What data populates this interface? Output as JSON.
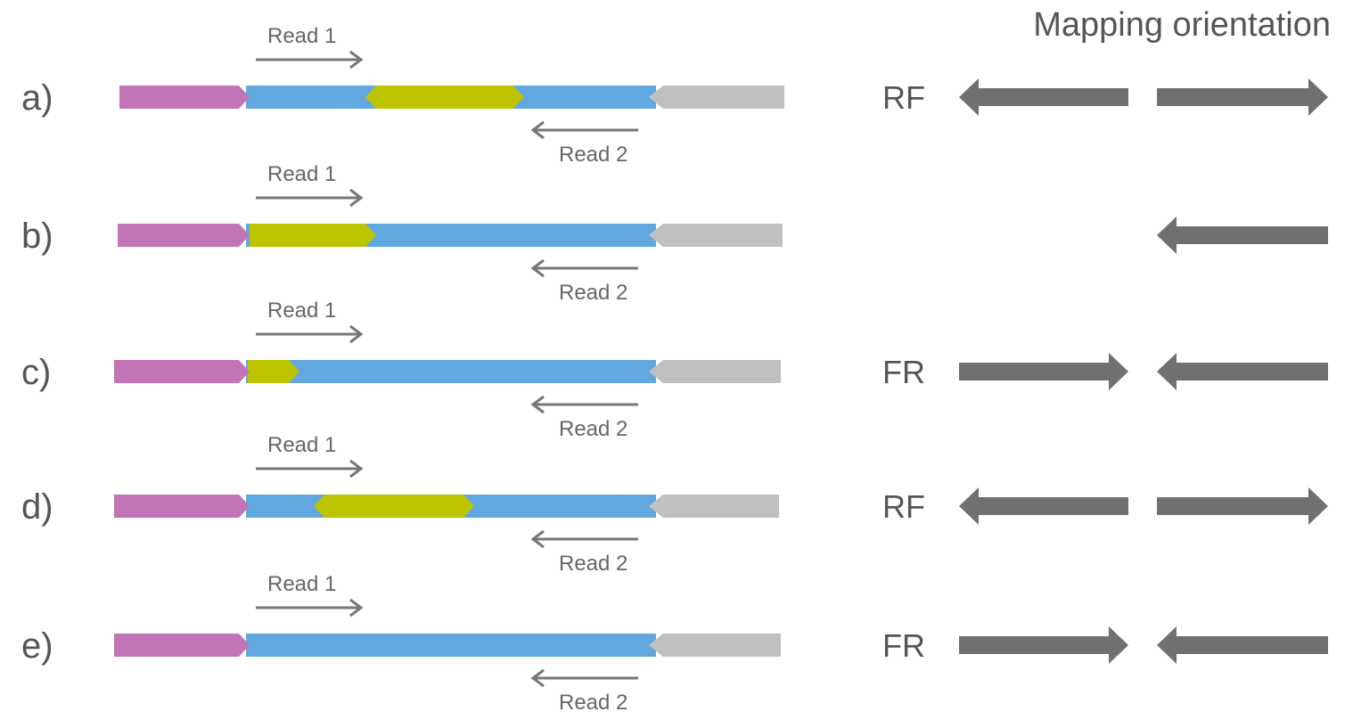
{
  "heading": "Mapping orientation",
  "colors": {
    "adapter_left": "#c275b6",
    "insert": "#62a8e0",
    "junction": "#bcc400",
    "adapter_right": "#c0c0c2",
    "read_arrow": "#777777",
    "orientation_arrow": "#707070",
    "text": "#555555"
  },
  "rows": [
    {
      "label": "a)",
      "read1_label": "Read 1",
      "read2_label": "Read 2",
      "orientation": "RF",
      "junction": "middle",
      "orientation_arrows": [
        "left",
        "right"
      ]
    },
    {
      "label": "b)",
      "read1_label": "Read 1",
      "read2_label": "Read 2",
      "orientation": "",
      "junction": "read1-start",
      "orientation_arrows": [
        "left"
      ]
    },
    {
      "label": "c)",
      "read1_label": "Read 1",
      "read2_label": "Read 2",
      "orientation": "FR",
      "junction": "read1-start-short",
      "orientation_arrows": [
        "right",
        "left"
      ]
    },
    {
      "label": "d)",
      "read1_label": "Read 1",
      "read2_label": "Read 2",
      "orientation": "RF",
      "junction": "middle",
      "orientation_arrows": [
        "left",
        "right"
      ]
    },
    {
      "label": "e)",
      "read1_label": "Read 1",
      "read2_label": "Read 2",
      "orientation": "FR",
      "junction": "none",
      "orientation_arrows": [
        "right",
        "left"
      ]
    }
  ]
}
